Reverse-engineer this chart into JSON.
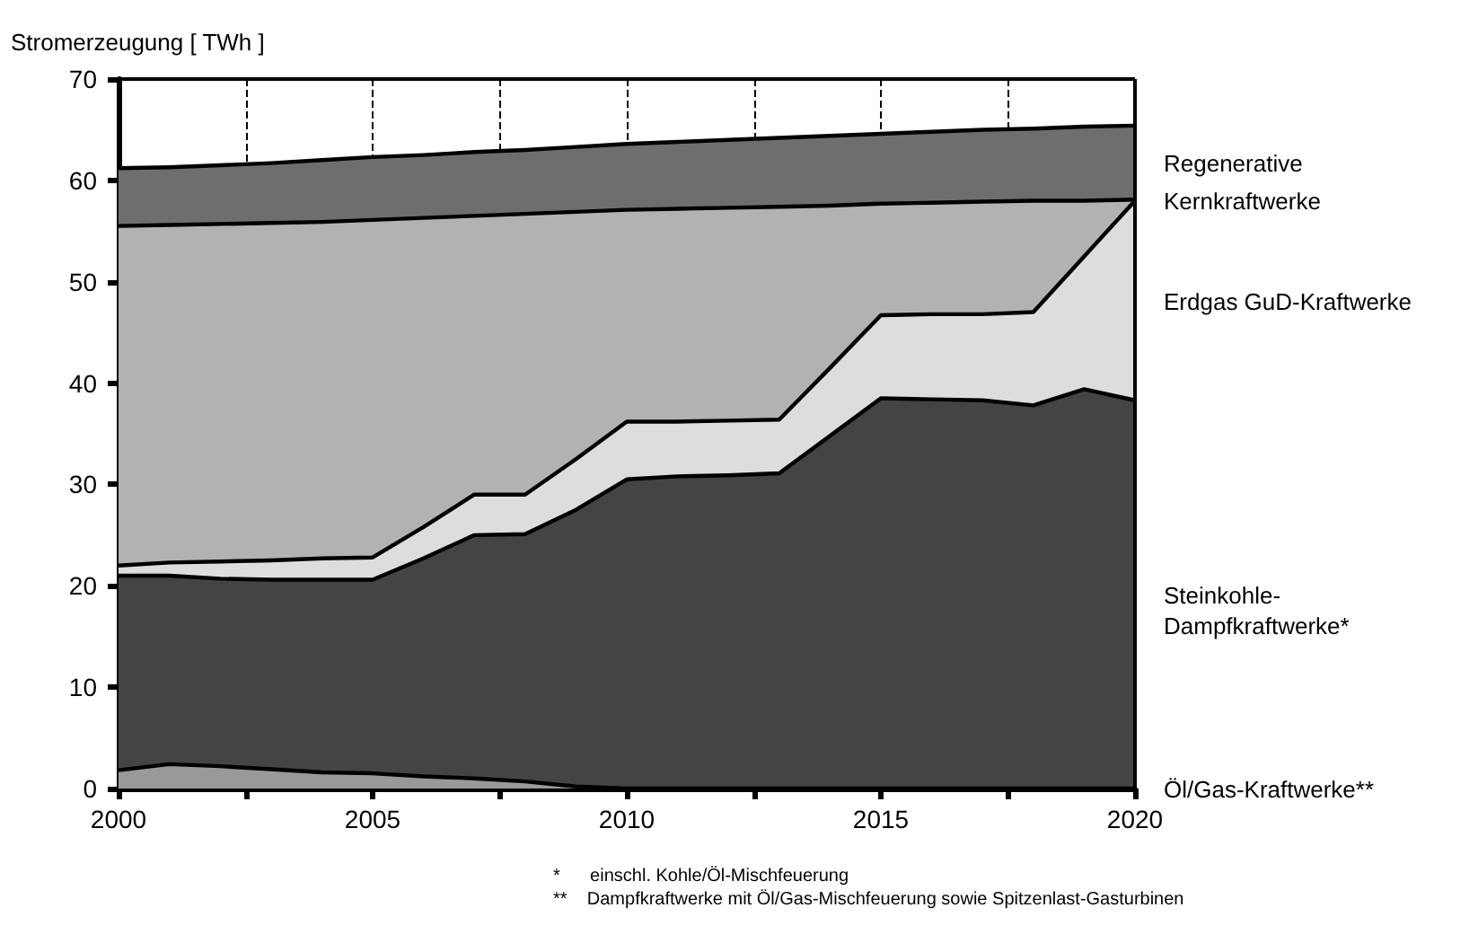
{
  "chart_data": {
    "type": "area",
    "stacked": true,
    "ylabel": "Stromerzeugung [ TWh ]",
    "x": [
      2000,
      2001,
      2002,
      2003,
      2004,
      2005,
      2006,
      2007,
      2008,
      2009,
      2010,
      2011,
      2012,
      2013,
      2014,
      2015,
      2016,
      2017,
      2018,
      2019,
      2020
    ],
    "series": [
      {
        "name": "Öl/Gas-Kraftwerke**",
        "color": "#999999",
        "values": [
          1.8,
          2.4,
          2.2,
          1.9,
          1.6,
          1.5,
          1.2,
          1.0,
          0.7,
          0.2,
          0,
          0,
          0,
          0,
          0,
          0,
          0,
          0,
          0,
          0,
          0
        ]
      },
      {
        "name": "Steinkohle-\nDampfkraftwerke*",
        "color": "#444444",
        "values": [
          19.2,
          18.6,
          18.5,
          18.7,
          19.0,
          19.1,
          21.5,
          24.0,
          24.4,
          27.3,
          30.5,
          30.8,
          30.9,
          31.1,
          34.8,
          38.5,
          38.4,
          38.3,
          37.8,
          39.4,
          38.3
        ]
      },
      {
        "name": "Erdgas GuD-Kraftwerke",
        "color": "#dddddd",
        "values": [
          1.0,
          1.3,
          1.7,
          1.9,
          2.1,
          2.2,
          3.1,
          4.0,
          3.9,
          5.0,
          5.7,
          5.4,
          5.4,
          5.3,
          6.7,
          8.2,
          8.4,
          8.5,
          9.2,
          13.1,
          19.7
        ]
      },
      {
        "name": "Kernkraftwerke",
        "color": "#b2b2b2",
        "values": [
          33.5,
          33.3,
          33.3,
          33.3,
          33.2,
          33.3,
          30.5,
          27.5,
          27.7,
          24.4,
          20.9,
          21.0,
          21.0,
          21.0,
          16.0,
          11.0,
          11.0,
          11.1,
          11.0,
          5.5,
          0.1
        ]
      },
      {
        "name": "Regenerative",
        "color": "#6e6e6e",
        "values": [
          5.7,
          5.7,
          5.8,
          5.9,
          6.1,
          6.2,
          6.2,
          6.3,
          6.3,
          6.4,
          6.5,
          6.6,
          6.7,
          6.8,
          6.9,
          6.9,
          7.0,
          7.1,
          7.1,
          7.3,
          7.3
        ]
      }
    ],
    "xlim": [
      2000,
      2020
    ],
    "xticks": [
      2000,
      {
        "value": 2002.5,
        "label": null
      },
      2005,
      {
        "value": 2007.5,
        "label": null
      },
      2010,
      {
        "value": 2012.5,
        "label": null
      },
      2015,
      {
        "value": 2017.5,
        "label": null
      },
      2020
    ],
    "ylim": [
      0,
      70
    ],
    "yticks": [
      0,
      10,
      20,
      30,
      40,
      50,
      60,
      70
    ],
    "grid": "x",
    "line_style": "solid",
    "legend": false,
    "annotations": [
      "*      einschl. Kohle/Öl-Mischfeuerung",
      "**    Dampfkraftwerke mit Öl/Gas-Mischfeuerung sowie Spitzenlast-Gasturbinen"
    ]
  }
}
